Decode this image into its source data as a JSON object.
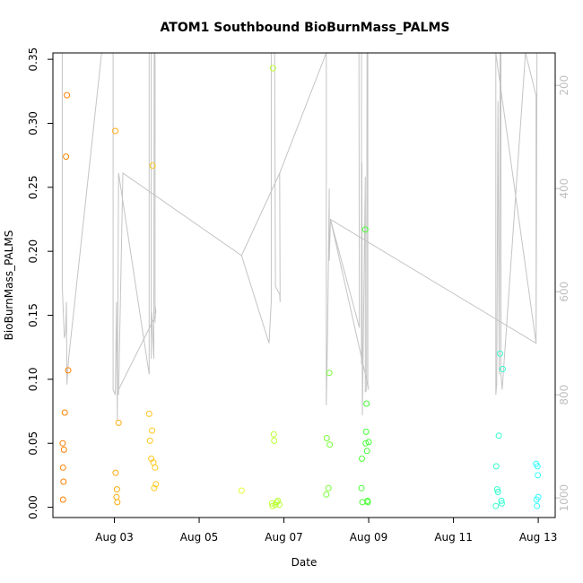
{
  "chart_data": {
    "type": "scatter",
    "title": "ATOM1 Southbound BioBurnMass_PALMS",
    "xlabel": "Date",
    "ylabel": "BioBurnMass_PALMS",
    "x_unit": "day of August (decimal)",
    "xlim": [
      1.55,
      13.4
    ],
    "ylim": [
      -0.008,
      0.355
    ],
    "x_ticks": [
      3,
      5,
      7,
      9,
      11,
      13
    ],
    "x_tick_labels": [
      "Aug 03",
      "Aug 05",
      "Aug 07",
      "Aug 09",
      "Aug 11",
      "Aug 13"
    ],
    "y_ticks": [
      0.0,
      0.05,
      0.1,
      0.15,
      0.2,
      0.25,
      0.3,
      0.35
    ],
    "y_tick_labels": [
      "0.00",
      "0.05",
      "0.10",
      "0.15",
      "0.20",
      "0.25",
      "0.30",
      "0.35"
    ],
    "y2_ticks": [
      200,
      400,
      600,
      800,
      1000
    ],
    "y2_tick_labels": [
      "200",
      "400",
      "600",
      "800",
      "1000"
    ],
    "y2lim": [
      1038,
      137
    ],
    "y2_color": "#bfbfbf",
    "color_ramp": [
      "#ff7f00",
      "#ffff33",
      "#33ff33",
      "#33ffff"
    ],
    "points": [
      {
        "x": 1.78,
        "y": 0.05
      },
      {
        "x": 1.79,
        "y": 0.031
      },
      {
        "x": 1.8,
        "y": 0.02
      },
      {
        "x": 1.79,
        "y": 0.006
      },
      {
        "x": 1.81,
        "y": 0.045
      },
      {
        "x": 1.83,
        "y": 0.074
      },
      {
        "x": 1.86,
        "y": 0.274
      },
      {
        "x": 1.88,
        "y": 0.322
      },
      {
        "x": 1.91,
        "y": 0.107
      },
      {
        "x": 3.02,
        "y": 0.294
      },
      {
        "x": 3.03,
        "y": 0.027
      },
      {
        "x": 3.05,
        "y": 0.008
      },
      {
        "x": 3.06,
        "y": 0.014
      },
      {
        "x": 3.07,
        "y": 0.004
      },
      {
        "x": 3.1,
        "y": 0.066
      },
      {
        "x": 3.82,
        "y": 0.073
      },
      {
        "x": 3.84,
        "y": 0.052
      },
      {
        "x": 3.87,
        "y": 0.038
      },
      {
        "x": 3.89,
        "y": 0.06
      },
      {
        "x": 3.9,
        "y": 0.267
      },
      {
        "x": 3.92,
        "y": 0.035
      },
      {
        "x": 3.94,
        "y": 0.015
      },
      {
        "x": 3.96,
        "y": 0.031
      },
      {
        "x": 3.98,
        "y": 0.018
      },
      {
        "x": 6.0,
        "y": 0.013
      },
      {
        "x": 6.72,
        "y": 0.003
      },
      {
        "x": 6.73,
        "y": 0.001
      },
      {
        "x": 6.74,
        "y": 0.343
      },
      {
        "x": 6.76,
        "y": 0.057
      },
      {
        "x": 6.77,
        "y": 0.052
      },
      {
        "x": 6.8,
        "y": 0.002
      },
      {
        "x": 6.83,
        "y": 0.004
      },
      {
        "x": 6.86,
        "y": 0.005
      },
      {
        "x": 6.89,
        "y": 0.002
      },
      {
        "x": 8.0,
        "y": 0.01
      },
      {
        "x": 8.01,
        "y": 0.054
      },
      {
        "x": 8.05,
        "y": 0.015
      },
      {
        "x": 8.07,
        "y": 0.105
      },
      {
        "x": 8.08,
        "y": 0.049
      },
      {
        "x": 8.83,
        "y": 0.015
      },
      {
        "x": 8.84,
        "y": 0.038
      },
      {
        "x": 8.85,
        "y": 0.004
      },
      {
        "x": 8.92,
        "y": 0.217
      },
      {
        "x": 8.93,
        "y": 0.05
      },
      {
        "x": 8.94,
        "y": 0.059
      },
      {
        "x": 8.95,
        "y": 0.081
      },
      {
        "x": 8.96,
        "y": 0.044
      },
      {
        "x": 8.97,
        "y": 0.005
      },
      {
        "x": 8.98,
        "y": 0.004
      },
      {
        "x": 9.0,
        "y": 0.051
      },
      {
        "x": 12.0,
        "y": 0.001
      },
      {
        "x": 12.01,
        "y": 0.032
      },
      {
        "x": 12.03,
        "y": 0.014
      },
      {
        "x": 12.05,
        "y": 0.012
      },
      {
        "x": 12.07,
        "y": 0.056
      },
      {
        "x": 12.1,
        "y": 0.12
      },
      {
        "x": 12.13,
        "y": 0.005
      },
      {
        "x": 12.14,
        "y": 0.003
      },
      {
        "x": 12.16,
        "y": 0.108
      },
      {
        "x": 12.95,
        "y": 0.034
      },
      {
        "x": 12.96,
        "y": 0.006
      },
      {
        "x": 12.97,
        "y": 0.001
      },
      {
        "x": 12.98,
        "y": 0.032
      },
      {
        "x": 12.99,
        "y": 0.025
      },
      {
        "x": 13.0,
        "y": 0.008
      }
    ],
    "altitude_track": [
      [
        1.77,
        137
      ],
      [
        1.77,
        590
      ],
      [
        1.82,
        690
      ],
      [
        1.85,
        677
      ],
      [
        1.87,
        620
      ],
      [
        1.88,
        780
      ],
      [
        1.92,
        730
      ],
      [
        2.7,
        137
      ],
      [
        2.97,
        137
      ],
      [
        2.97,
        790
      ],
      [
        3.02,
        800
      ],
      [
        3.05,
        620
      ],
      [
        3.07,
        850
      ],
      [
        3.1,
        370
      ],
      [
        3.82,
        760
      ],
      [
        3.82,
        137
      ],
      [
        3.87,
        137
      ],
      [
        3.87,
        730
      ],
      [
        3.88,
        640
      ],
      [
        3.93,
        730
      ],
      [
        3.94,
        137
      ],
      [
        3.96,
        137
      ],
      [
        3.96,
        660
      ],
      [
        3.97,
        630
      ],
      [
        3.98,
        640
      ],
      [
        3.95,
        650
      ],
      [
        3.1,
        790
      ],
      [
        3.1,
        800
      ],
      [
        3.2,
        370
      ],
      [
        6.0,
        530
      ],
      [
        6.9,
        370
      ],
      [
        6.91,
        620
      ],
      [
        6.9,
        605
      ],
      [
        6.8,
        590
      ],
      [
        6.78,
        137
      ],
      [
        6.7,
        137
      ],
      [
        6.7,
        620
      ],
      [
        6.65,
        700
      ],
      [
        6.0,
        530
      ],
      [
        6.0,
        530
      ],
      [
        6.9,
        370
      ],
      [
        6.9,
        370
      ],
      [
        8.0,
        137
      ],
      [
        8.0,
        820
      ],
      [
        8.03,
        680
      ],
      [
        8.05,
        540
      ],
      [
        8.07,
        400
      ],
      [
        8.07,
        540
      ],
      [
        8.1,
        460
      ],
      [
        8.78,
        670
      ],
      [
        8.77,
        137
      ],
      [
        8.83,
        137
      ],
      [
        8.83,
        740
      ],
      [
        8.84,
        350
      ],
      [
        8.85,
        840
      ],
      [
        8.92,
        377
      ],
      [
        8.92,
        795
      ],
      [
        8.95,
        790
      ],
      [
        8.96,
        137
      ],
      [
        8.98,
        137
      ],
      [
        8.98,
        780
      ],
      [
        9.0,
        790
      ],
      [
        8.1,
        460
      ],
      [
        12.95,
        700
      ],
      [
        12.0,
        137
      ],
      [
        12.0,
        800
      ],
      [
        12.02,
        780
      ],
      [
        12.05,
        230
      ],
      [
        12.08,
        760
      ],
      [
        12.1,
        137
      ],
      [
        12.12,
        137
      ],
      [
        12.12,
        760
      ],
      [
        12.15,
        790
      ],
      [
        12.7,
        137
      ],
      [
        12.95,
        220
      ],
      [
        12.95,
        700
      ],
      [
        12.97,
        137
      ],
      [
        13.0,
        137
      ]
    ]
  }
}
